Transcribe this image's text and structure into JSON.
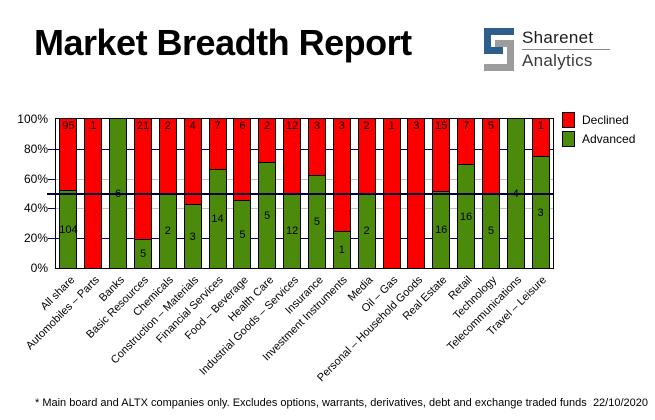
{
  "header": {
    "title": "Market Breadth Report",
    "brand": {
      "name": "Sharenet",
      "division": "Analytics"
    }
  },
  "legend": {
    "declined": "Declined",
    "advanced": "Advanced"
  },
  "footer": {
    "note": "* Main board and ALTX companies only. Excludes options, warrants, derivatives, debt and exchange traded funds",
    "date": "22/10/2020"
  },
  "colors": {
    "declined": "#fc0000",
    "advanced": "#4c8a0c",
    "grid_navy": "#000080",
    "grid_silver": "#c0c0c0",
    "midline_50pct": "#000040",
    "logo_blue": "#2e5f8c",
    "logo_gray": "#9c9c9c"
  },
  "chart_data": {
    "type": "bar",
    "stacked": true,
    "stack_unit": "percent_of_total",
    "title": "Market Breadth Report",
    "categories": [
      "All share",
      "Automobiles – Parts",
      "Banks",
      "Basic Resources",
      "Chemicals",
      "Construction – Materials",
      "Financial Services",
      "Food – Beverage",
      "Health Care",
      "Industrial Goods – Services",
      "Insurance",
      "Investment Instruments",
      "Media",
      "Oil – Gas",
      "Personal – Household Goods",
      "Real Estate",
      "Retail",
      "Technology",
      "Telecommunications",
      "Travel – Leisure"
    ],
    "series": [
      {
        "name": "Declined",
        "color": "#fc0000",
        "values": [
          95,
          1,
          0,
          21,
          2,
          4,
          7,
          6,
          2,
          12,
          3,
          3,
          2,
          1,
          3,
          15,
          7,
          5,
          0,
          1
        ]
      },
      {
        "name": "Advanced",
        "color": "#4c8a0c",
        "values": [
          104,
          0,
          6,
          5,
          2,
          3,
          14,
          5,
          5,
          12,
          5,
          1,
          2,
          0,
          0,
          16,
          16,
          5,
          4,
          3
        ]
      }
    ],
    "y_ticks": [
      "100%",
      "80%",
      "60%",
      "40%",
      "20%",
      "0%"
    ],
    "ylim": [
      0,
      100
    ],
    "gridlines_percent": [
      80,
      60,
      40,
      20
    ],
    "gridline_colors": [
      "#000080",
      "#c0c0c0",
      "#c0c0c0",
      "#000080"
    ],
    "reference_line_percent": 50,
    "legend_position": "top-right",
    "bar_outline": "#000000"
  }
}
